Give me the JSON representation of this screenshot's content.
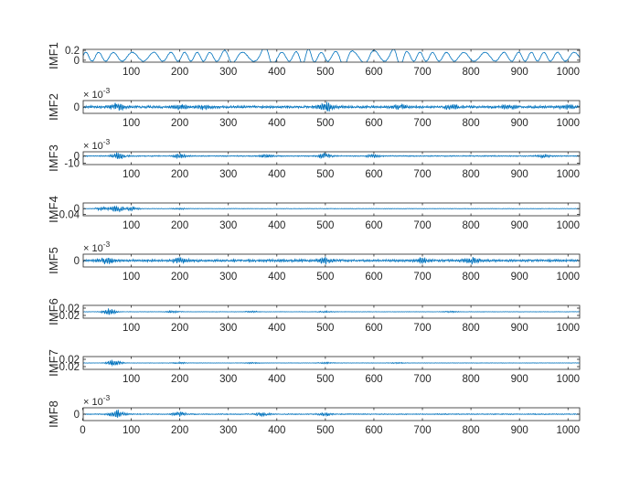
{
  "chart_data": {
    "type": "line",
    "line_color": "#0072BD",
    "axis_color": "#262626",
    "grid": false,
    "x": {
      "lim": [
        1,
        1024
      ],
      "ticks": [
        100,
        200,
        300,
        400,
        500,
        600,
        700,
        800,
        900,
        1000
      ],
      "tick_labels": [
        "100",
        "200",
        "300",
        "400",
        "500",
        "600",
        "700",
        "800",
        "900",
        "1000"
      ],
      "bottom_ticks": [
        0,
        100,
        200,
        300,
        400,
        500,
        600,
        700,
        800,
        900,
        1000
      ],
      "bottom_tick_labels": [
        "0",
        "100",
        "200",
        "300",
        "400",
        "500",
        "600",
        "700",
        "800",
        "900",
        "1000"
      ]
    },
    "panels": [
      {
        "ylabel": "IMF1",
        "exponent": "",
        "ylim": [
          -0.04,
          0.22
        ],
        "yticks": [
          0,
          0.2
        ],
        "ytick_labels": [
          "0",
          "0.2"
        ],
        "style": "smooth",
        "amp": 0.1,
        "base": 0.07,
        "bursts": [
          [
            380,
            0.16
          ],
          [
            540,
            0.12
          ],
          [
            650,
            0.12
          ],
          [
            300,
            0.06
          ],
          [
            460,
            0.09
          ],
          [
            590,
            0.08
          ]
        ]
      },
      {
        "ylabel": "IMF2",
        "exponent": "10^-3",
        "ylim": [
          -1.2,
          1.2
        ],
        "yticks": [
          0
        ],
        "ytick_labels": [
          "0"
        ],
        "style": "osc",
        "amp": 0.25,
        "base": 0,
        "bursts": [
          [
            70,
            0.8
          ],
          [
            200,
            0.5
          ],
          [
            250,
            0.4
          ],
          [
            500,
            1.0
          ],
          [
            650,
            0.4
          ],
          [
            760,
            0.45
          ],
          [
            880,
            0.35
          ],
          [
            1000,
            0.3
          ]
        ]
      },
      {
        "ylabel": "IMF3",
        "exponent": "10^-3",
        "ylim": [
          -12,
          6
        ],
        "yticks": [
          -10,
          0
        ],
        "ytick_labels": [
          "-10",
          "0"
        ],
        "style": "osc",
        "amp": 0.8,
        "base": 0,
        "bursts": [
          [
            75,
            5
          ],
          [
            200,
            3
          ],
          [
            380,
            2.5
          ],
          [
            500,
            4
          ],
          [
            600,
            2.5
          ],
          [
            950,
            3
          ]
        ]
      },
      {
        "ylabel": "IMF4",
        "exponent": "",
        "ylim": [
          -0.05,
          0.04
        ],
        "yticks": [
          -0.04,
          0
        ],
        "ytick_labels": [
          "-0.04",
          "0"
        ],
        "style": "osc",
        "amp": 0.002,
        "base": 0,
        "bursts": [
          [
            40,
            0.012
          ],
          [
            70,
            0.022
          ],
          [
            100,
            0.016
          ],
          [
            200,
            0.005
          ]
        ]
      },
      {
        "ylabel": "IMF5",
        "exponent": "10^-3",
        "ylim": [
          -1.2,
          1.2
        ],
        "yticks": [
          0
        ],
        "ytick_labels": [
          "0"
        ],
        "style": "osc",
        "amp": 0.25,
        "base": 0,
        "bursts": [
          [
            50,
            0.6
          ],
          [
            200,
            0.5
          ],
          [
            500,
            0.5
          ],
          [
            700,
            0.4
          ],
          [
            800,
            0.5
          ]
        ]
      },
      {
        "ylabel": "IMF6",
        "exponent": "",
        "ylim": [
          -0.035,
          0.035
        ],
        "yticks": [
          -0.02,
          0.02
        ],
        "ytick_labels": [
          "-0.02",
          "0.02"
        ],
        "style": "osc",
        "amp": 0.0012,
        "base": 0,
        "bursts": [
          [
            55,
            0.02
          ],
          [
            185,
            0.006
          ],
          [
            350,
            0.004
          ],
          [
            500,
            0.005
          ],
          [
            760,
            0.004
          ]
        ]
      },
      {
        "ylabel": "IMF7",
        "exponent": "",
        "ylim": [
          -0.035,
          0.035
        ],
        "yticks": [
          -0.02,
          0.02
        ],
        "ytick_labels": [
          "-0.02",
          "0.02"
        ],
        "style": "osc",
        "amp": 0.0012,
        "base": 0,
        "bursts": [
          [
            65,
            0.02
          ],
          [
            200,
            0.005
          ],
          [
            350,
            0.004
          ],
          [
            500,
            0.004
          ],
          [
            650,
            0.003
          ]
        ]
      },
      {
        "ylabel": "IMF8",
        "exponent": "10^-3",
        "ylim": [
          -1.2,
          1.2
        ],
        "yticks": [
          0
        ],
        "ytick_labels": [
          "0"
        ],
        "style": "osc",
        "amp": 0.1,
        "base": 0,
        "bursts": [
          [
            70,
            0.9
          ],
          [
            200,
            0.4
          ],
          [
            370,
            0.4
          ],
          [
            500,
            0.3
          ]
        ]
      }
    ]
  }
}
